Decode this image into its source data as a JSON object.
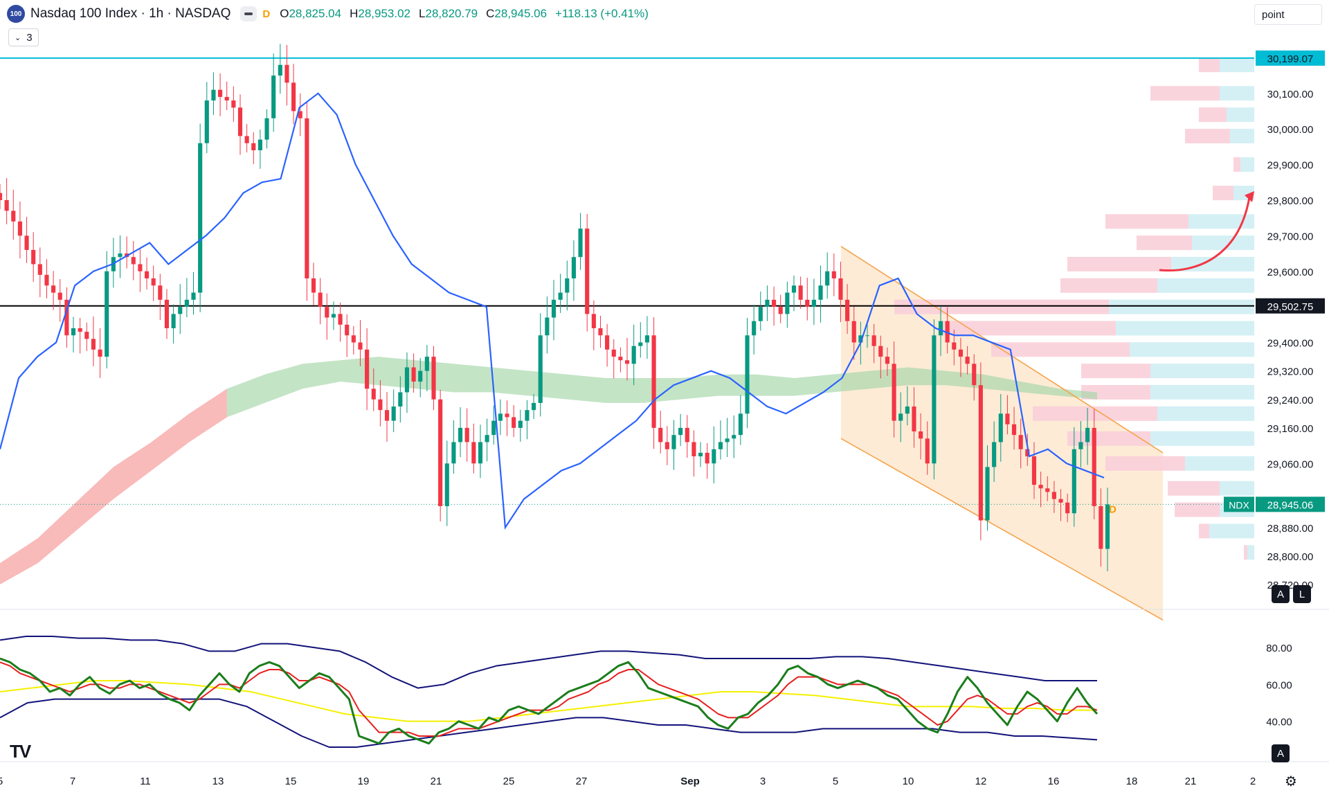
{
  "header": {
    "logo_text": "100",
    "title": "Nasdaq 100 Index · 1h · NASDAQ",
    "interval_flag": "D",
    "open_label": "O",
    "open": "28,825.04",
    "high_label": "H",
    "high": "28,953.02",
    "low_label": "L",
    "low": "28,820.79",
    "close_label": "C",
    "close": "28,945.06",
    "change": "+118.13 (+0.41%)"
  },
  "indicator_badge": {
    "count": "3"
  },
  "unit_field": {
    "value": "point"
  },
  "buttons": {
    "auto_label": "A",
    "log_label": "L"
  },
  "colors": {
    "up": "#089981",
    "down": "#f23645",
    "ma_blue": "#2962ff",
    "cloud_green": "#a5d6a7",
    "cloud_red": "#f7a9a9",
    "channel": "#f7a34b",
    "channel_fill": "#fde7cf",
    "vp_pink": "#f9cfd9",
    "vp_cyan": "#d4f0f5",
    "top_line": "#00bcd4",
    "hline": "#000000",
    "rsi_green": "#1b7d1b",
    "rsi_red": "#e61f1f",
    "rsi_yellow": "#f5f000",
    "rsi_band": "#12127a"
  },
  "chart_data": {
    "type": "candlestick",
    "symbol": "NDX",
    "timeframe": "1h",
    "ylim": [
      28650,
      30230
    ],
    "y_ticks": [
      30100,
      30000,
      29900,
      29800,
      29700,
      29600,
      29400,
      29320,
      29240,
      29160,
      29060,
      28880,
      28800,
      28720
    ],
    "y_tick_labels": [
      "30,100.00",
      "30,000.00",
      "29,900.00",
      "29,800.00",
      "29,700.00",
      "29,600.00",
      "29,400.00",
      "29,320.00",
      "29,240.00",
      "29,160.00",
      "29,060.00",
      "28,880.00",
      "28,800.00",
      "28,720.00"
    ],
    "price_labels": [
      {
        "value": 30199.07,
        "text": "30,199.07",
        "kind": "top-line"
      },
      {
        "value": 29502.75,
        "text": "29,502.75",
        "kind": "horizontal-line"
      },
      {
        "value": 28945.06,
        "text": "28,945.06",
        "tag": "NDX",
        "kind": "last-price"
      }
    ],
    "x_tick_labels": [
      "5",
      "7",
      "11",
      "13",
      "15",
      "19",
      "21",
      "25",
      "27",
      "Sep",
      "3",
      "5",
      "10",
      "12",
      "16",
      "18",
      "21",
      "2"
    ],
    "x_tick_index": [
      0,
      105,
      210,
      315,
      420,
      525,
      630,
      735,
      840,
      997,
      1102,
      1207,
      1312,
      1417,
      1522,
      1635,
      1720,
      1810
    ],
    "closes": [
      29800,
      29770,
      29740,
      29700,
      29660,
      29620,
      29590,
      29560,
      29540,
      29520,
      29420,
      29440,
      29430,
      29410,
      29380,
      29360,
      29600,
      29640,
      29650,
      29640,
      29620,
      29600,
      29580,
      29560,
      29520,
      29440,
      29480,
      29500,
      29520,
      29540,
      29960,
      30080,
      30110,
      30090,
      30080,
      30060,
      29980,
      29960,
      29940,
      29970,
      30030,
      30150,
      30180,
      30130,
      30050,
      30030,
      29580,
      29540,
      29500,
      29470,
      29480,
      29450,
      29420,
      29400,
      29380,
      29270,
      29240,
      29210,
      29180,
      29220,
      29260,
      29330,
      29290,
      29320,
      29360,
      29240,
      28940,
      29060,
      29120,
      29160,
      29120,
      29060,
      29120,
      29140,
      29180,
      29200,
      29190,
      29160,
      29180,
      29210,
      29230,
      29420,
      29470,
      29520,
      29540,
      29580,
      29640,
      29720,
      29480,
      29440,
      29420,
      29380,
      29360,
      29350,
      29340,
      29390,
      29400,
      29420,
      29160,
      29120,
      29100,
      29140,
      29160,
      29120,
      29080,
      29090,
      29060,
      29100,
      29120,
      29130,
      29140,
      29200,
      29420,
      29460,
      29500,
      29520,
      29500,
      29480,
      29540,
      29560,
      29520,
      29500,
      29520,
      29560,
      29600,
      29580,
      29520,
      29460,
      29400,
      29420,
      29420,
      29390,
      29360,
      29340,
      29180,
      29200,
      29220,
      29150,
      29130,
      29060,
      29420,
      29460,
      29400,
      29380,
      29360,
      29340,
      29280,
      28900,
      29050,
      29120,
      29200,
      29170,
      29140,
      29100,
      29080,
      29000,
      28990,
      28980,
      28960,
      28950,
      28920,
      29100,
      29120,
      29160,
      28940,
      28820,
      28945
    ],
    "ma_line": [
      29100,
      29300,
      29360,
      29400,
      29560,
      29600,
      29620,
      29650,
      29680,
      29620,
      29660,
      29700,
      29750,
      29820,
      29850,
      29860,
      30060,
      30100,
      30040,
      29900,
      29800,
      29700,
      29620,
      29580,
      29540,
      29520,
      29500,
      28880,
      28960,
      29000,
      29040,
      29060,
      29100,
      29140,
      29180,
      29240,
      29280,
      29300,
      29320,
      29300,
      29260,
      29220,
      29200,
      29230,
      29260,
      29300,
      29400,
      29560,
      29580,
      29480,
      29440,
      29420,
      29420,
      29400,
      29380,
      29080,
      29100,
      29060,
      29040,
      29020
    ],
    "ma_cloud_upper": [
      28780,
      28850,
      28950,
      29050,
      29120,
      29200,
      29270,
      29310,
      29340,
      29350,
      29360,
      29350,
      29340,
      29330,
      29320,
      29310,
      29300,
      29300,
      29300,
      29310,
      29310,
      29300,
      29310,
      29320,
      29330,
      29320,
      29310,
      29290,
      29270,
      29260
    ],
    "ma_cloud_lower": [
      28720,
      28780,
      28870,
      28960,
      29040,
      29120,
      29190,
      29230,
      29270,
      29290,
      29280,
      29270,
      29260,
      29260,
      29250,
      29240,
      29230,
      29230,
      29240,
      29250,
      29250,
      29250,
      29260,
      29270,
      29280,
      29280,
      29270,
      29260,
      29250,
      29240
    ],
    "channel": {
      "upper_start": [
        1215,
        29670
      ],
      "upper_end": [
        1680,
        29090
      ],
      "lower_start": [
        1215,
        29130
      ],
      "lower_end": [
        1680,
        28620
      ]
    },
    "volume_profile_levels": [
      30180,
      30100,
      30040,
      29980,
      29900,
      29820,
      29740,
      29680,
      29620,
      29560,
      29500,
      29440,
      29380,
      29320,
      29260,
      29200,
      29130,
      29060,
      28990,
      28930,
      28870,
      28810
    ],
    "volume_profile_pink": [
      30,
      100,
      40,
      65,
      10,
      30,
      120,
      80,
      150,
      140,
      310,
      250,
      200,
      100,
      100,
      180,
      120,
      115,
      75,
      65,
      15,
      5
    ],
    "volume_profile_cyan": [
      50,
      50,
      40,
      35,
      20,
      30,
      95,
      90,
      120,
      140,
      210,
      200,
      180,
      150,
      150,
      140,
      150,
      100,
      50,
      50,
      65,
      10
    ],
    "rsi": {
      "ylim": [
        20,
        95
      ],
      "ticks": [
        80,
        60,
        40
      ],
      "tick_labels": [
        "80.00",
        "60.00",
        "40.00"
      ],
      "rsi_line": [
        74,
        72,
        68,
        66,
        62,
        56,
        58,
        54,
        60,
        64,
        58,
        55,
        60,
        62,
        58,
        60,
        55,
        52,
        50,
        46,
        54,
        60,
        66,
        60,
        56,
        66,
        70,
        72,
        70,
        64,
        58,
        62,
        66,
        64,
        58,
        52,
        32,
        30,
        28,
        34,
        36,
        32,
        30,
        28,
        34,
        36,
        40,
        38,
        36,
        42,
        40,
        46,
        48,
        46,
        44,
        48,
        52,
        56,
        58,
        60,
        62,
        66,
        70,
        72,
        66,
        58,
        56,
        54,
        52,
        50,
        48,
        42,
        38,
        36,
        42,
        44,
        50,
        54,
        60,
        68,
        70,
        66,
        64,
        60,
        58,
        60,
        62,
        60,
        58,
        54,
        52,
        46,
        40,
        36,
        34,
        44,
        56,
        64,
        58,
        50,
        44,
        38,
        48,
        56,
        52,
        46,
        40,
        50,
        58,
        50,
        44
      ],
      "signal_line": [
        72,
        70,
        66,
        64,
        62,
        60,
        58,
        56,
        58,
        60,
        60,
        58,
        58,
        60,
        60,
        58,
        56,
        54,
        52,
        50,
        52,
        56,
        60,
        60,
        58,
        62,
        66,
        68,
        68,
        66,
        62,
        62,
        64,
        62,
        60,
        56,
        46,
        40,
        34,
        34,
        34,
        34,
        32,
        32,
        32,
        34,
        36,
        36,
        36,
        38,
        40,
        42,
        44,
        46,
        46,
        46,
        48,
        52,
        54,
        56,
        60,
        62,
        66,
        68,
        68,
        64,
        60,
        58,
        56,
        54,
        52,
        48,
        44,
        42,
        42,
        42,
        46,
        50,
        54,
        60,
        64,
        64,
        64,
        62,
        60,
        60,
        60,
        60,
        58,
        56,
        54,
        50,
        46,
        42,
        38,
        40,
        46,
        52,
        54,
        52,
        48,
        44,
        44,
        48,
        50,
        48,
        44,
        44,
        48,
        48,
        46
      ],
      "mid_band": [
        56,
        58,
        60,
        62,
        62,
        61,
        60,
        58,
        56,
        52,
        48,
        44,
        42,
        40,
        40,
        40,
        42,
        44,
        46,
        48,
        50,
        52,
        54,
        56,
        56,
        55,
        54,
        52,
        50,
        48,
        48,
        48,
        47,
        47,
        46,
        46
      ],
      "upper_band": [
        84,
        86,
        86,
        85,
        85,
        84,
        84,
        82,
        78,
        78,
        82,
        82,
        80,
        78,
        72,
        64,
        58,
        60,
        66,
        70,
        72,
        74,
        76,
        78,
        78,
        77,
        76,
        74,
        74,
        74,
        74,
        74,
        75,
        75,
        74,
        72,
        70,
        68,
        66,
        64,
        62,
        62,
        62
      ],
      "lower_band": [
        42,
        50,
        52,
        52,
        52,
        52,
        52,
        52,
        52,
        48,
        40,
        32,
        26,
        26,
        28,
        30,
        32,
        34,
        36,
        38,
        40,
        42,
        42,
        40,
        38,
        38,
        36,
        34,
        34,
        34,
        36,
        36,
        36,
        36,
        36,
        34,
        34,
        32,
        32,
        31,
        30
      ]
    }
  }
}
